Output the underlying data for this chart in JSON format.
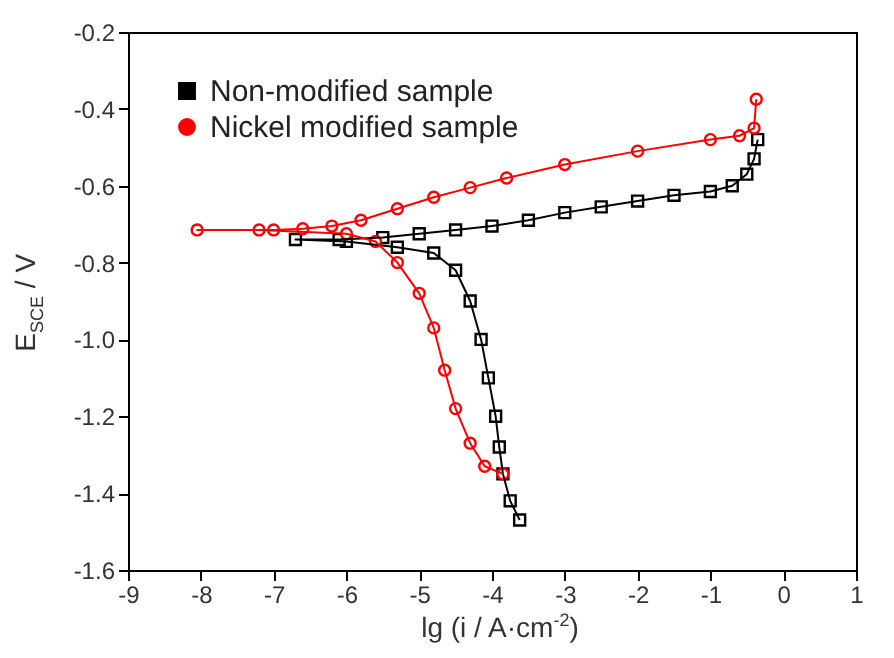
{
  "chart_data": {
    "type": "line",
    "xlabel": "lg (i / A·cm$^{-2}$)",
    "ylabel": "E$_{SCE}$ / V",
    "xlim": [
      -9,
      1
    ],
    "xticks": [
      -9,
      -8,
      -7,
      -6,
      -5,
      -4,
      -3,
      -2,
      -1,
      0,
      1
    ],
    "ylim": [
      -1.6,
      -0.2
    ],
    "yticks": [
      -1.6,
      -1.4,
      -1.2,
      {
        "value": -1,
        "label": "-1.0"
      },
      -0.8,
      -0.6,
      -0.4,
      -0.2
    ],
    "legend": "top left",
    "grid": false,
    "series": [
      {
        "name": "Non-modified sample",
        "color": "#000000",
        "marker": "square",
        "x": [
          -3.62,
          -3.75,
          -3.85,
          -3.9,
          -3.95,
          -4.05,
          -4.15,
          -4.3,
          -4.5,
          -4.8,
          -5.3,
          -6.0,
          -6.7,
          -6.1,
          -5.5,
          -5.0,
          -4.5,
          -4.0,
          -3.5,
          -3.0,
          -2.5,
          -2.0,
          -1.5,
          -1.0,
          -0.7,
          -0.5,
          -0.4,
          -0.35
        ],
        "values": [
          -1.47,
          -1.42,
          -1.35,
          -1.28,
          -1.2,
          -1.1,
          -1.0,
          -0.9,
          -0.82,
          -0.775,
          -0.76,
          -0.745,
          -0.74,
          -0.74,
          -0.735,
          -0.725,
          -0.715,
          -0.705,
          -0.69,
          -0.67,
          -0.655,
          -0.64,
          -0.625,
          -0.615,
          -0.6,
          -0.57,
          -0.53,
          -0.48
        ]
      },
      {
        "name": "Nickel modified sample",
        "color": "#ff0000",
        "marker": "circle",
        "x": [
          -3.85,
          -4.1,
          -4.3,
          -4.5,
          -4.65,
          -4.8,
          -5.0,
          -5.3,
          -5.6,
          -6.0,
          -7.2,
          -8.05,
          -7.0,
          -6.6,
          -6.2,
          -5.8,
          -5.3,
          -4.8,
          -4.3,
          -3.8,
          -3.0,
          -2.0,
          -1.0,
          -0.6,
          -0.4,
          -0.37
        ],
        "values": [
          -1.35,
          -1.33,
          -1.27,
          -1.18,
          -1.08,
          -0.97,
          -0.88,
          -0.8,
          -0.745,
          -0.725,
          -0.715,
          -0.715,
          -0.715,
          -0.712,
          -0.705,
          -0.69,
          -0.66,
          -0.63,
          -0.605,
          -0.58,
          -0.545,
          -0.51,
          -0.48,
          -0.47,
          -0.45,
          -0.375
        ]
      }
    ]
  }
}
